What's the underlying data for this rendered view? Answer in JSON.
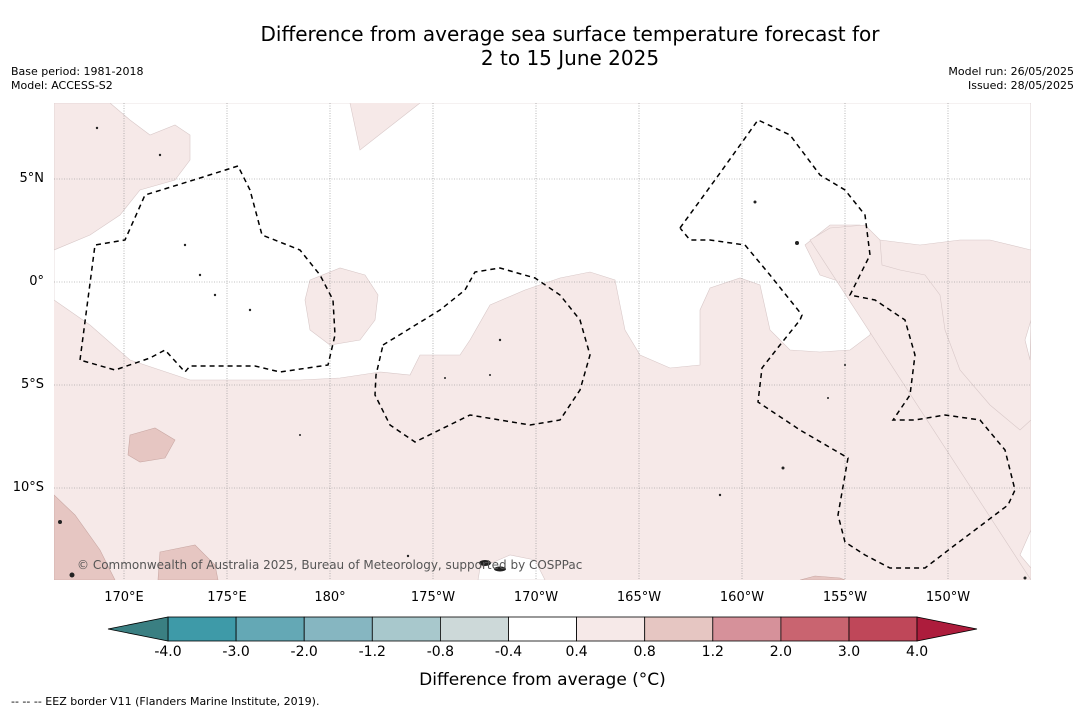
{
  "title": {
    "line1": "Difference from average sea surface temperature forecast for",
    "line2": "2 to 15 June 2025"
  },
  "meta_left": {
    "base_period": "Base period: 1981-2018",
    "model": "Model: ACCESS-S2"
  },
  "meta_right": {
    "model_run": "Model run: 26/05/2025",
    "issued": "Issued: 28/05/2025"
  },
  "lat_labels": [
    "5°N",
    "0°",
    "5°S",
    "10°S"
  ],
  "lon_labels": [
    "170°E",
    "175°E",
    "180°",
    "175°W",
    "170°W",
    "165°W",
    "160°W",
    "155°W",
    "150°W"
  ],
  "copyright": "© Commonwealth of Australia 2025, Bureau of Meteorology, supported by COSPPac",
  "colorbar": {
    "tick_labels": [
      "-4.0",
      "-3.0",
      "-2.0",
      "-1.2",
      "-0.8",
      "-0.4",
      "0.4",
      "0.8",
      "1.2",
      "2.0",
      "3.0",
      "4.0"
    ],
    "colors": [
      "#3e9aa8",
      "#64a8b5",
      "#86b6c1",
      "#a8c8cc",
      "#cdd9d9",
      "#ffffff",
      "#f6e9e8",
      "#e6c6c2",
      "#d6919a",
      "#c96470",
      "#bf4759"
    ],
    "under_color": "#3a7f82",
    "over_color": "#ad1c3c",
    "label": "Difference from average (°C)"
  },
  "map_colors": {
    "light_anomaly": "#f6e9e8",
    "medium_anomaly": "#e6c6c2"
  },
  "footnote": "--  --  -- EEZ border V11 (Flanders Marine Institute, 2019)."
}
